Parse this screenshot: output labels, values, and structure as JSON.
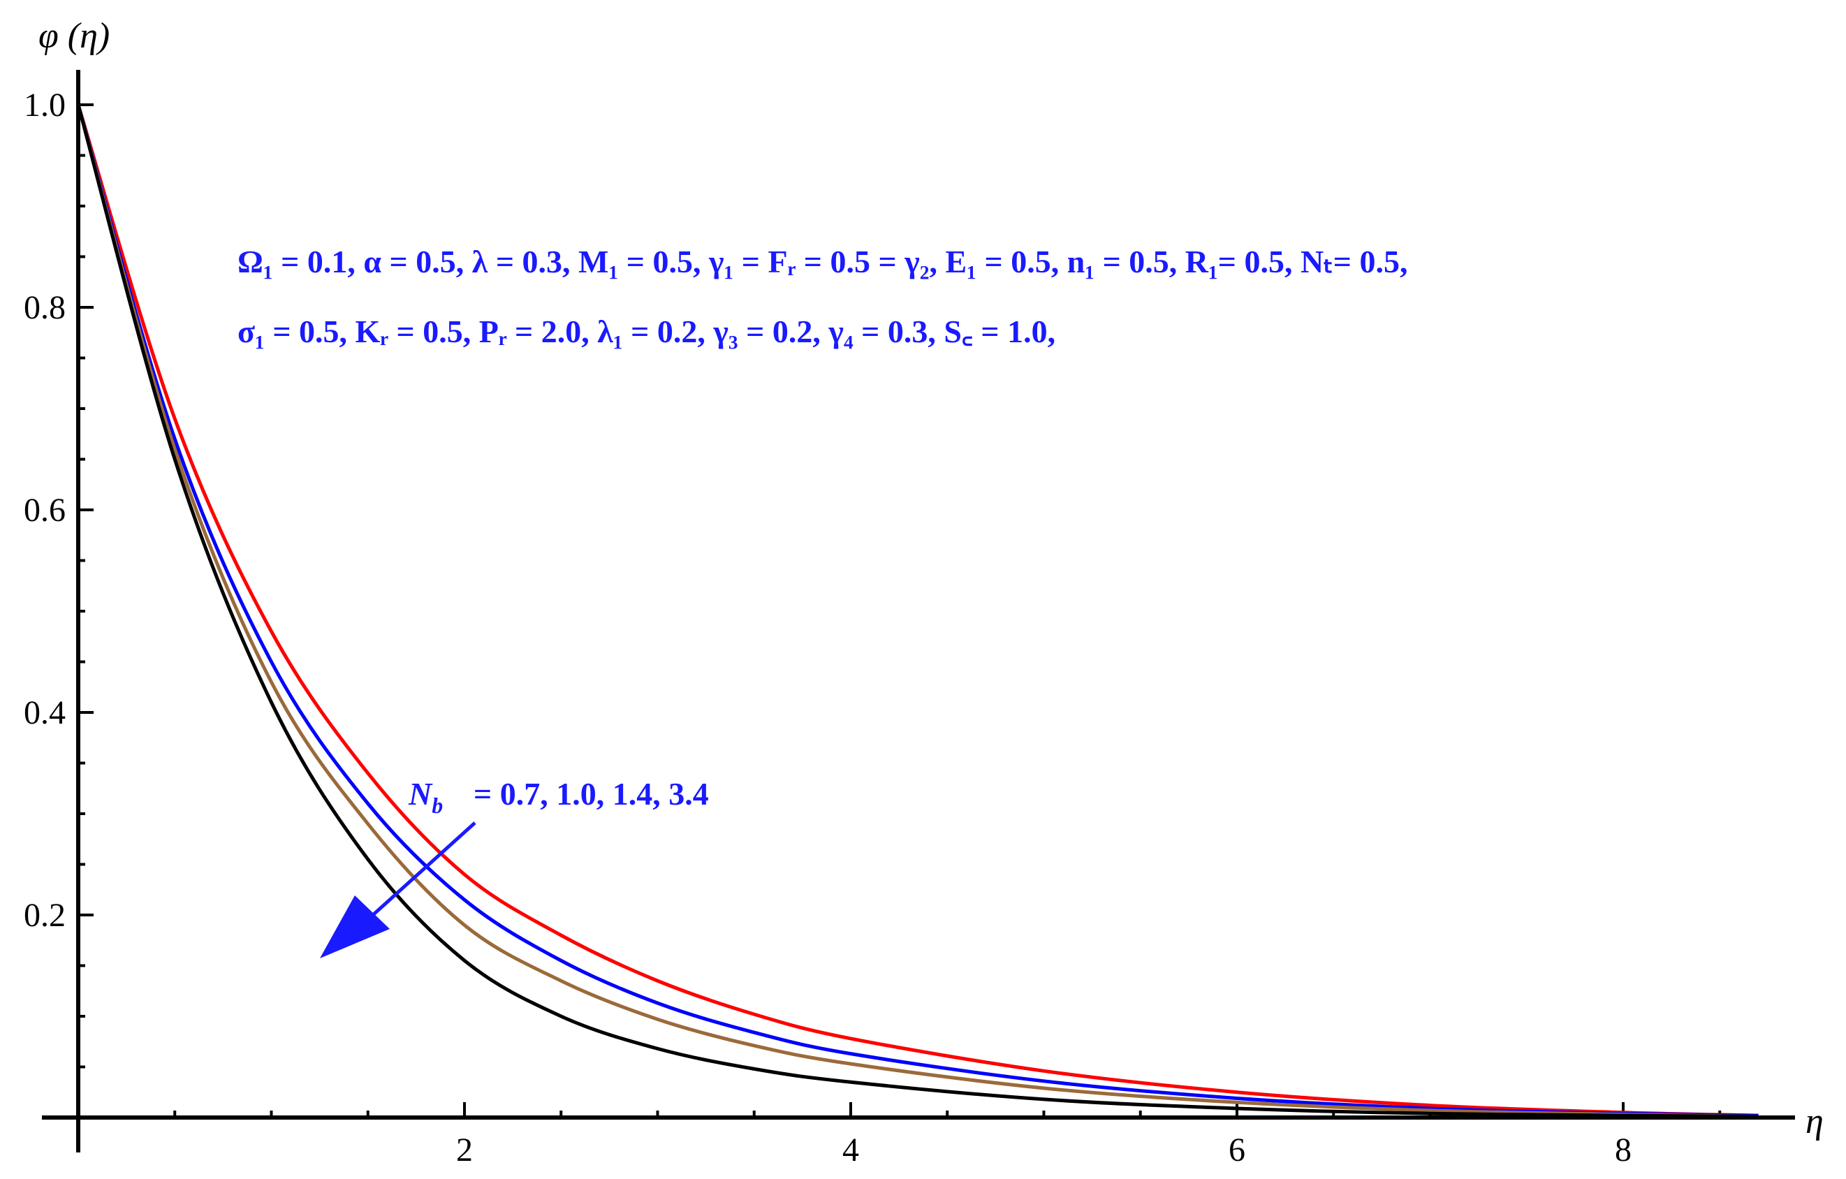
{
  "chart_data": {
    "type": "line",
    "xlabel": "η",
    "ylabel": "φ (η)",
    "xlim": [
      0,
      8.7
    ],
    "ylim": [
      0,
      1.0
    ],
    "x_ticks": [
      "2",
      "4",
      "6",
      "8"
    ],
    "y_ticks": [
      "0.2",
      "0.4",
      "0.6",
      "0.8",
      "1.0"
    ],
    "grid": false,
    "series": [
      {
        "color": "#ff0000",
        "x": [
          0,
          0.5,
          1,
          1.5,
          2,
          2.5,
          3,
          3.5,
          4,
          5,
          6,
          7,
          8,
          8.7
        ],
        "values": [
          1.0,
          0.69,
          0.48,
          0.34,
          0.24,
          0.18,
          0.135,
          0.102,
          0.078,
          0.046,
          0.025,
          0.012,
          0.005,
          0.002
        ]
      },
      {
        "color": "#0000ff",
        "x": [
          0,
          0.5,
          1,
          1.5,
          2,
          2.5,
          3,
          3.5,
          4,
          5,
          6,
          7,
          8,
          8.7
        ],
        "values": [
          1.0,
          0.67,
          0.45,
          0.31,
          0.215,
          0.155,
          0.113,
          0.084,
          0.063,
          0.036,
          0.019,
          0.009,
          0.004,
          0.002
        ]
      },
      {
        "color": "#9b6a3a",
        "x": [
          0,
          0.5,
          1,
          1.5,
          2,
          2.5,
          3,
          3.5,
          4,
          5,
          6,
          7,
          8,
          8.7
        ],
        "values": [
          1.0,
          0.66,
          0.43,
          0.29,
          0.19,
          0.135,
          0.097,
          0.071,
          0.053,
          0.029,
          0.015,
          0.007,
          0.003,
          0.001
        ]
      },
      {
        "color": "#000000",
        "x": [
          0,
          0.5,
          1,
          1.5,
          2,
          2.5,
          3,
          3.5,
          4,
          5,
          6,
          7,
          8,
          8.7
        ],
        "values": [
          1.0,
          0.65,
          0.41,
          0.255,
          0.155,
          0.1,
          0.068,
          0.048,
          0.035,
          0.018,
          0.009,
          0.004,
          0.002,
          0.001
        ]
      }
    ],
    "annotations": {
      "params_line1": "Ω₁ =  0.1, α = 0.5, λ = 0.3, M₁ = 0.5, γ₁ = Fᵣ = 0.5 = γ₂, E₁ = 0.5, n₁ = 0.5, R₁= 0.5, Nₜ= 0.5,",
      "params_line2": "σ₁ = 0.5,  Kᵣ = 0.5, Pᵣ = 2.0, λ₁ = 0.2, γ₃ = 0.2, γ₄ = 0.3, S꜀ = 1.0,",
      "nb_label": "N_b",
      "nb_values": "= 0.7, 1.0, 1.4, 3.4"
    },
    "annotation_color": "#1a1aff"
  }
}
